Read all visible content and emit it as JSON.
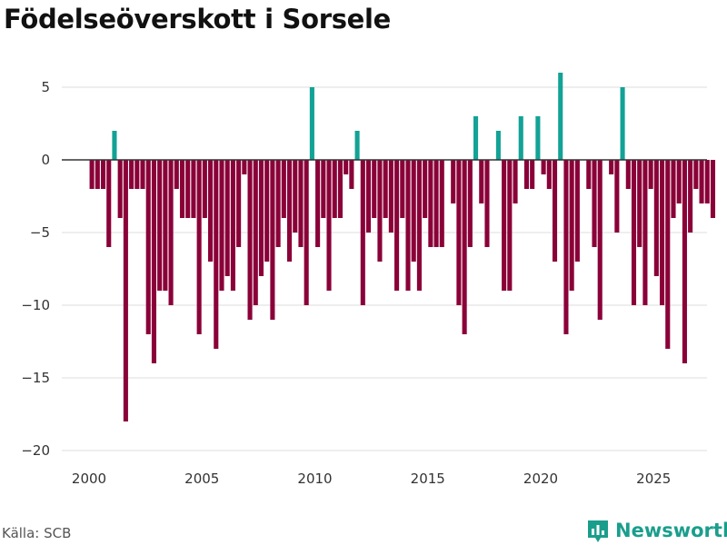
{
  "title": "Födelseöverskott i Sorsele",
  "source": "Källa: SCB",
  "brand": {
    "name": "Newsworthy",
    "logo_icon": "bar-chart-logo-icon",
    "color": "#1a9e8c"
  },
  "colors": {
    "positive": "#12a296",
    "negative": "#8a0038",
    "zero_line": "#333333",
    "grid": "#dddddd"
  },
  "chart_data": {
    "type": "bar",
    "title": "Födelseöverskott i Sorsele",
    "xlabel": "",
    "ylabel": "",
    "ylim": [
      -20,
      7
    ],
    "xlim": [
      1999,
      2027.4
    ],
    "yticks": [
      5,
      0,
      -5,
      -10,
      -15,
      -20
    ],
    "ytick_labels": [
      "5",
      "0",
      "−5",
      "−10",
      "−15",
      "−20"
    ],
    "xticks": [
      2000,
      2005,
      2010,
      2015,
      2020,
      2025
    ],
    "xtick_labels": [
      "2000",
      "2005",
      "2010",
      "2015",
      "2020",
      "2025"
    ],
    "period": "quarterly",
    "start": 2000.0,
    "step": 0.25,
    "values": [
      -2,
      -2,
      -2,
      -6,
      2,
      -4,
      -18,
      -2,
      -2,
      -2,
      -12,
      -14,
      -9,
      -9,
      -10,
      -2,
      -4,
      -4,
      -4,
      -12,
      -4,
      -7,
      -13,
      -9,
      -8,
      -9,
      -6,
      -1,
      -11,
      -10,
      -8,
      -7,
      -11,
      -6,
      -4,
      -7,
      -5,
      -6,
      -10,
      5,
      -6,
      -4,
      -9,
      -4,
      -4,
      -1,
      -2,
      2,
      -10,
      -5,
      -4,
      -7,
      -4,
      -5,
      -9,
      -4,
      -9,
      -7,
      -9,
      -4,
      -6,
      -6,
      -6,
      0,
      -3,
      -10,
      -12,
      -6,
      3,
      -3,
      -6,
      0,
      2,
      -9,
      -9,
      -3,
      3,
      -2,
      -2,
      3,
      -1,
      -2,
      -7,
      6,
      -12,
      -9,
      -7,
      0,
      -2,
      -6,
      -11,
      0,
      -1,
      -5,
      5,
      -2,
      -10,
      -6,
      -10,
      -2,
      -8,
      -10,
      -13,
      -4,
      -3,
      -14,
      -5,
      -2,
      -3,
      -3,
      -4
    ]
  }
}
